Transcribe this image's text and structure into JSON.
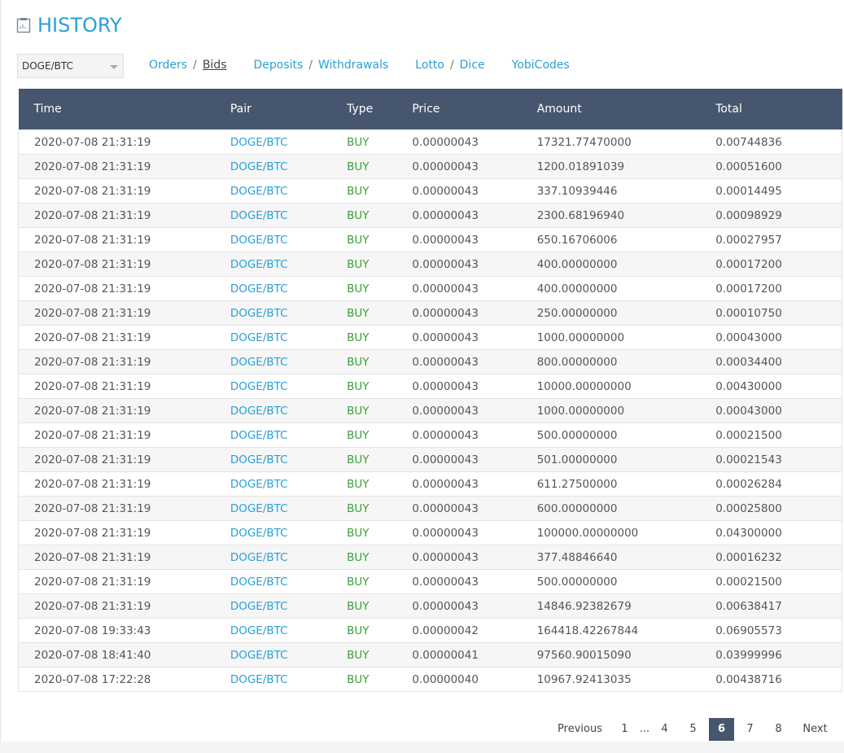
{
  "header": {
    "title": "HISTORY"
  },
  "selector": {
    "value": "DOGE/BTC"
  },
  "nav": {
    "separator": "/",
    "active": "Bids",
    "groups": [
      [
        "Orders",
        "Bids"
      ],
      [
        "Deposits",
        "Withdrawals"
      ],
      [
        "Lotto",
        "Dice"
      ],
      [
        "YobiCodes"
      ]
    ]
  },
  "table": {
    "columns": [
      "Time",
      "Pair",
      "Type",
      "Price",
      "Amount",
      "Total"
    ],
    "rows": [
      [
        "2020-07-08 21:31:19",
        "DOGE/BTC",
        "BUY",
        "0.00000043",
        "17321.77470000",
        "0.00744836"
      ],
      [
        "2020-07-08 21:31:19",
        "DOGE/BTC",
        "BUY",
        "0.00000043",
        "1200.01891039",
        "0.00051600"
      ],
      [
        "2020-07-08 21:31:19",
        "DOGE/BTC",
        "BUY",
        "0.00000043",
        "337.10939446",
        "0.00014495"
      ],
      [
        "2020-07-08 21:31:19",
        "DOGE/BTC",
        "BUY",
        "0.00000043",
        "2300.68196940",
        "0.00098929"
      ],
      [
        "2020-07-08 21:31:19",
        "DOGE/BTC",
        "BUY",
        "0.00000043",
        "650.16706006",
        "0.00027957"
      ],
      [
        "2020-07-08 21:31:19",
        "DOGE/BTC",
        "BUY",
        "0.00000043",
        "400.00000000",
        "0.00017200"
      ],
      [
        "2020-07-08 21:31:19",
        "DOGE/BTC",
        "BUY",
        "0.00000043",
        "400.00000000",
        "0.00017200"
      ],
      [
        "2020-07-08 21:31:19",
        "DOGE/BTC",
        "BUY",
        "0.00000043",
        "250.00000000",
        "0.00010750"
      ],
      [
        "2020-07-08 21:31:19",
        "DOGE/BTC",
        "BUY",
        "0.00000043",
        "1000.00000000",
        "0.00043000"
      ],
      [
        "2020-07-08 21:31:19",
        "DOGE/BTC",
        "BUY",
        "0.00000043",
        "800.00000000",
        "0.00034400"
      ],
      [
        "2020-07-08 21:31:19",
        "DOGE/BTC",
        "BUY",
        "0.00000043",
        "10000.00000000",
        "0.00430000"
      ],
      [
        "2020-07-08 21:31:19",
        "DOGE/BTC",
        "BUY",
        "0.00000043",
        "1000.00000000",
        "0.00043000"
      ],
      [
        "2020-07-08 21:31:19",
        "DOGE/BTC",
        "BUY",
        "0.00000043",
        "500.00000000",
        "0.00021500"
      ],
      [
        "2020-07-08 21:31:19",
        "DOGE/BTC",
        "BUY",
        "0.00000043",
        "501.00000000",
        "0.00021543"
      ],
      [
        "2020-07-08 21:31:19",
        "DOGE/BTC",
        "BUY",
        "0.00000043",
        "611.27500000",
        "0.00026284"
      ],
      [
        "2020-07-08 21:31:19",
        "DOGE/BTC",
        "BUY",
        "0.00000043",
        "600.00000000",
        "0.00025800"
      ],
      [
        "2020-07-08 21:31:19",
        "DOGE/BTC",
        "BUY",
        "0.00000043",
        "100000.00000000",
        "0.04300000"
      ],
      [
        "2020-07-08 21:31:19",
        "DOGE/BTC",
        "BUY",
        "0.00000043",
        "377.48846640",
        "0.00016232"
      ],
      [
        "2020-07-08 21:31:19",
        "DOGE/BTC",
        "BUY",
        "0.00000043",
        "500.00000000",
        "0.00021500"
      ],
      [
        "2020-07-08 21:31:19",
        "DOGE/BTC",
        "BUY",
        "0.00000043",
        "14846.92382679",
        "0.00638417"
      ],
      [
        "2020-07-08 19:33:43",
        "DOGE/BTC",
        "BUY",
        "0.00000042",
        "164418.42267844",
        "0.06905573"
      ],
      [
        "2020-07-08 18:41:40",
        "DOGE/BTC",
        "BUY",
        "0.00000041",
        "97560.90015090",
        "0.03999996"
      ],
      [
        "2020-07-08 17:22:28",
        "DOGE/BTC",
        "BUY",
        "0.00000040",
        "10967.92413035",
        "0.00438716"
      ]
    ]
  },
  "pagination": {
    "previous": "Previous",
    "pages": [
      "1",
      "...",
      "4",
      "5",
      "6",
      "7",
      "8"
    ],
    "current": "6",
    "next": "Next"
  }
}
